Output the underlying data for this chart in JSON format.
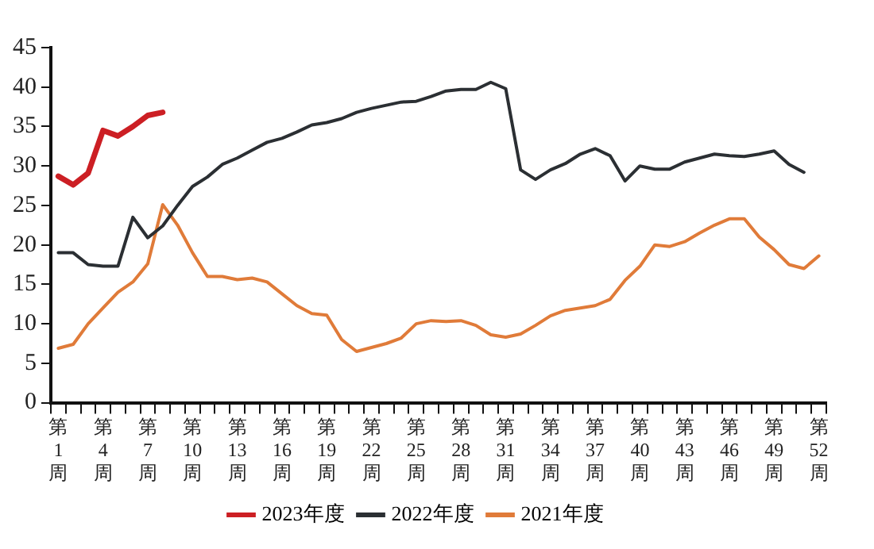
{
  "chart_data": {
    "type": "line",
    "categories": [
      "第1周",
      null,
      null,
      "第4周",
      null,
      null,
      "第7周",
      null,
      null,
      "第10周",
      null,
      null,
      "第13周",
      null,
      null,
      "第16周",
      null,
      null,
      "第19周",
      null,
      null,
      "第22周",
      null,
      null,
      "第25周",
      null,
      null,
      "第28周",
      null,
      null,
      "第31周",
      null,
      null,
      "第34周",
      null,
      null,
      "第37周",
      null,
      null,
      "第40周",
      null,
      null,
      "第43周",
      null,
      null,
      "第46周",
      null,
      null,
      "第49周",
      null,
      null,
      "第52周"
    ],
    "series": [
      {
        "name": "2023年度",
        "color": "#cc1f24",
        "values": [
          28.7,
          27.6,
          29.1,
          34.5,
          33.8,
          35,
          36.4,
          36.8,
          null,
          null,
          null,
          null,
          null,
          null,
          null,
          null,
          null,
          null,
          null,
          null,
          null,
          null,
          null,
          null,
          null,
          null,
          null,
          null,
          null,
          null,
          null,
          null,
          null,
          null,
          null,
          null,
          null,
          null,
          null,
          null,
          null,
          null,
          null,
          null,
          null,
          null,
          null,
          null,
          null,
          null,
          null,
          null
        ]
      },
      {
        "name": "2022年度",
        "color": "#2b2f33",
        "values": [
          19,
          19,
          17.5,
          17.3,
          17.3,
          23.5,
          20.9,
          22.4,
          25,
          27.4,
          28.6,
          30.2,
          31,
          32,
          33,
          33.5,
          34.3,
          35.2,
          35.5,
          36,
          36.8,
          37.3,
          37.7,
          38.1,
          38.2,
          38.8,
          39.5,
          39.7,
          39.7,
          40.6,
          39.8,
          29.5,
          28.3,
          29.5,
          30.3,
          31.5,
          32.2,
          31.3,
          28.1,
          30,
          29.6,
          29.6,
          30.5,
          31,
          31.5,
          31.3,
          31.2,
          31.5,
          31.9,
          30.2,
          29.2,
          null
        ]
      },
      {
        "name": "2021年度",
        "color": "#e07b39",
        "values": [
          6.9,
          7.4,
          10,
          12,
          14,
          15.3,
          17.6,
          25.1,
          22.5,
          19,
          16,
          16,
          15.6,
          15.8,
          15.3,
          13.8,
          12.3,
          11.3,
          11.1,
          8,
          6.5,
          7,
          7.5,
          8.2,
          10,
          10.4,
          10.3,
          10.4,
          9.8,
          8.6,
          8.3,
          8.7,
          9.8,
          11,
          11.7,
          12,
          12.3,
          13.1,
          15.5,
          17.3,
          20,
          19.8,
          20.4,
          21.5,
          22.5,
          23.3,
          23.3,
          21,
          19.4,
          17.5,
          17,
          18.6
        ]
      }
    ],
    "ylim": [
      0,
      45
    ],
    "yticks": [
      0,
      5,
      10,
      15,
      20,
      25,
      30,
      35,
      40,
      45
    ],
    "grid": false,
    "legend": "bottom",
    "marker": "none",
    "line_style": "solid"
  }
}
